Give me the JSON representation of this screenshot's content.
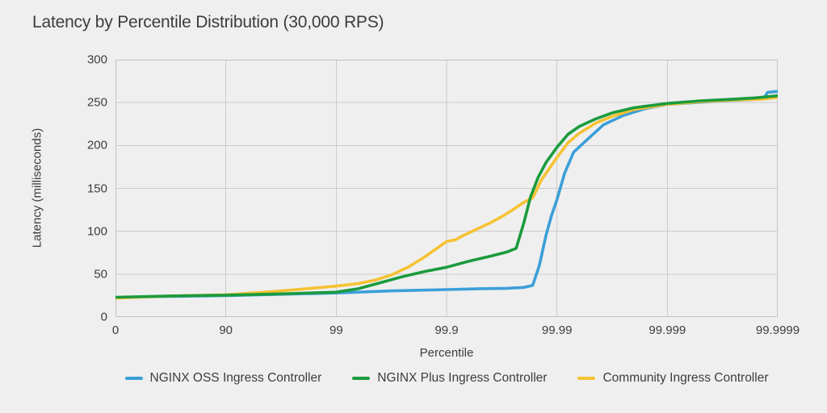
{
  "chart_data": {
    "type": "line",
    "title": "Latency by Percentile Distribution (30,000 RPS)",
    "xlabel": "Percentile",
    "ylabel": "Latency (milliseconds)",
    "x_ticks": [
      "0",
      "90",
      "99",
      "99.9",
      "99.99",
      "99.999",
      "99.9999"
    ],
    "x_scale": "log-percentile; equal spacing per labeled tick, series x = tick index 0-6",
    "ylim": [
      0,
      300
    ],
    "y_ticks": [
      0,
      50,
      100,
      150,
      200,
      250,
      300
    ],
    "grid": true,
    "legend_position": "bottom",
    "background_color": "#efefef",
    "gridline_color": "#cbcbcb",
    "border_color": "#c3c3c3",
    "text_color": "#3c3c3c",
    "line_width": 3.6,
    "draw_order": [
      0,
      2,
      1
    ],
    "series": [
      {
        "name": "NGINX OSS Ingress Controller",
        "color": "#3b9fd8",
        "points": [
          [
            0,
            22
          ],
          [
            0.08,
            23
          ],
          [
            0.5,
            24
          ],
          [
            1,
            25
          ],
          [
            1.5,
            26.5
          ],
          [
            2,
            28
          ],
          [
            2.5,
            30.5
          ],
          [
            3,
            32
          ],
          [
            3.3,
            33
          ],
          [
            3.55,
            33.5
          ],
          [
            3.7,
            34.5
          ],
          [
            3.78,
            37
          ],
          [
            3.84,
            60
          ],
          [
            3.9,
            95
          ],
          [
            3.95,
            118
          ],
          [
            4,
            137
          ],
          [
            4.07,
            168
          ],
          [
            4.15,
            192
          ],
          [
            4.25,
            204
          ],
          [
            4.42,
            224
          ],
          [
            4.6,
            235
          ],
          [
            4.8,
            243
          ],
          [
            5,
            248
          ],
          [
            5.25,
            250
          ],
          [
            5.5,
            252
          ],
          [
            5.75,
            253.5
          ],
          [
            5.87,
            254.5
          ],
          [
            5.91,
            262
          ],
          [
            6,
            263
          ]
        ]
      },
      {
        "name": "NGINX Plus Ingress Controller",
        "color": "#1a9b3d",
        "points": [
          [
            0,
            23
          ],
          [
            0.5,
            24.5
          ],
          [
            1,
            25.5
          ],
          [
            1.5,
            27
          ],
          [
            2,
            29
          ],
          [
            2.2,
            33
          ],
          [
            2.4,
            40
          ],
          [
            2.6,
            47
          ],
          [
            2.8,
            53
          ],
          [
            3,
            58
          ],
          [
            3.2,
            65
          ],
          [
            3.4,
            71
          ],
          [
            3.55,
            76
          ],
          [
            3.63,
            80
          ],
          [
            3.7,
            110
          ],
          [
            3.76,
            140
          ],
          [
            3.83,
            163
          ],
          [
            3.9,
            180
          ],
          [
            4,
            198
          ],
          [
            4.1,
            213
          ],
          [
            4.2,
            222
          ],
          [
            4.35,
            231
          ],
          [
            4.5,
            238
          ],
          [
            4.7,
            244
          ],
          [
            5,
            249
          ],
          [
            5.3,
            252
          ],
          [
            5.6,
            254
          ],
          [
            5.8,
            255.5
          ],
          [
            6,
            258
          ]
        ]
      },
      {
        "name": "Community Ingress Controller",
        "color": "#f5c233",
        "points": [
          [
            0,
            22
          ],
          [
            0.5,
            24.5
          ],
          [
            1,
            26
          ],
          [
            1.3,
            28.5
          ],
          [
            1.6,
            31.5
          ],
          [
            2,
            36
          ],
          [
            2.2,
            39
          ],
          [
            2.35,
            43
          ],
          [
            2.5,
            49
          ],
          [
            2.65,
            58
          ],
          [
            2.8,
            70
          ],
          [
            2.9,
            79
          ],
          [
            3,
            88
          ],
          [
            3.08,
            90
          ],
          [
            3.15,
            95
          ],
          [
            3.25,
            101
          ],
          [
            3.4,
            110
          ],
          [
            3.5,
            117
          ],
          [
            3.6,
            125
          ],
          [
            3.69,
            133
          ],
          [
            3.78,
            139
          ],
          [
            3.86,
            160
          ],
          [
            3.93,
            173
          ],
          [
            4,
            186
          ],
          [
            4.1,
            203
          ],
          [
            4.2,
            214
          ],
          [
            4.35,
            226
          ],
          [
            4.5,
            234
          ],
          [
            4.7,
            242
          ],
          [
            5,
            248
          ],
          [
            5.3,
            251
          ],
          [
            5.6,
            253
          ],
          [
            5.85,
            254
          ],
          [
            6,
            256
          ]
        ]
      }
    ]
  }
}
